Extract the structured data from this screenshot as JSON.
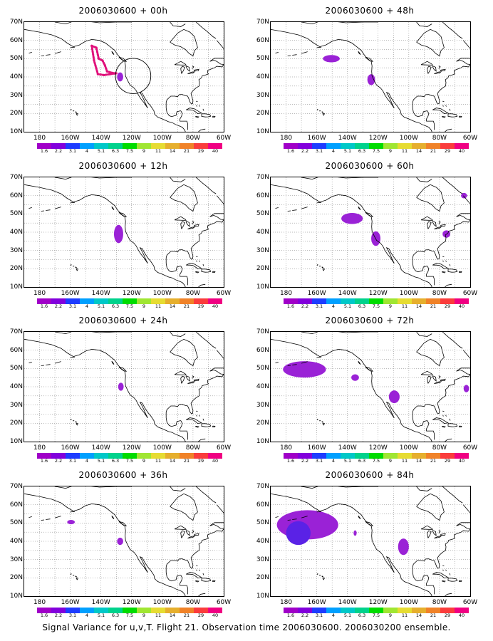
{
  "panels": [
    {
      "title": "2006030600 + 00h",
      "col": 0,
      "row": 0,
      "blobs": [
        {
          "lon": -127.5,
          "lat": 40.0,
          "rx": 2.0,
          "ry": 2.5,
          "color": "#9a22d6"
        }
      ],
      "flight_track": [
        [
          -146.0,
          57.0
        ],
        [
          -143.0,
          56.0
        ],
        [
          -141.5,
          50.0
        ],
        [
          -139.0,
          49.0
        ],
        [
          -137.5,
          46.5
        ],
        [
          -136.0,
          43.0
        ],
        [
          -131.5,
          42.0
        ],
        [
          -130.0,
          42.0
        ],
        [
          -134.0,
          41.5
        ],
        [
          -138.0,
          41.0
        ],
        [
          -142.0,
          41.5
        ],
        [
          -144.5,
          49.0
        ],
        [
          -146.0,
          57.0
        ]
      ],
      "circle": {
        "lon": -119.0,
        "lat": 40.5,
        "r_deg": 11.5
      }
    },
    {
      "title": "2006030600 + 48h",
      "col": 1,
      "row": 0,
      "blobs": [
        {
          "lon": -150.5,
          "lat": 50.0,
          "rx": 5.5,
          "ry": 2.0,
          "color": "#9a22d6"
        },
        {
          "lon": -124.5,
          "lat": 38.5,
          "rx": 2.5,
          "ry": 3.0,
          "color": "#9a22d6"
        }
      ]
    },
    {
      "title": "2006030600 + 12h",
      "col": 0,
      "row": 1,
      "blobs": [
        {
          "lon": -128.5,
          "lat": 39.0,
          "rx": 3.0,
          "ry": 5.0,
          "color": "#9a22d6"
        }
      ]
    },
    {
      "title": "2006030600 + 60h",
      "col": 1,
      "row": 1,
      "blobs": [
        {
          "lon": -137.0,
          "lat": 47.5,
          "rx": 7.0,
          "ry": 3.0,
          "color": "#9a22d6"
        },
        {
          "lon": -121.5,
          "lat": 36.5,
          "rx": 3.0,
          "ry": 4.0,
          "color": "#9a22d6"
        },
        {
          "lon": -75.5,
          "lat": 39.0,
          "rx": 2.5,
          "ry": 2.0,
          "color": "#9a22d6"
        },
        {
          "lon": -64.0,
          "lat": 60.0,
          "rx": 2.0,
          "ry": 1.5,
          "color": "#9a22d6"
        }
      ]
    },
    {
      "title": "2006030600 + 24h",
      "col": 0,
      "row": 2,
      "blobs": [
        {
          "lon": -127.0,
          "lat": 40.0,
          "rx": 1.8,
          "ry": 2.2,
          "color": "#9a22d6"
        }
      ]
    },
    {
      "title": "2006030600 + 72h",
      "col": 1,
      "row": 2,
      "blobs": [
        {
          "lon": -168.0,
          "lat": 49.5,
          "rx": 14.0,
          "ry": 4.5,
          "color": "#9a22d6"
        },
        {
          "lon": -135.0,
          "lat": 45.0,
          "rx": 2.5,
          "ry": 1.8,
          "color": "#9a22d6"
        },
        {
          "lon": -109.5,
          "lat": 34.5,
          "rx": 3.5,
          "ry": 3.5,
          "color": "#9a22d6"
        },
        {
          "lon": -62.5,
          "lat": 39.0,
          "rx": 1.8,
          "ry": 2.0,
          "color": "#9a22d6"
        }
      ]
    },
    {
      "title": "2006030600 + 36h",
      "col": 0,
      "row": 3,
      "blobs": [
        {
          "lon": -159.5,
          "lat": 50.5,
          "rx": 2.5,
          "ry": 1.2,
          "color": "#9a22d6"
        },
        {
          "lon": -127.5,
          "lat": 40.0,
          "rx": 2.0,
          "ry": 2.0,
          "color": "#9a22d6"
        }
      ]
    },
    {
      "title": "2006030600 + 84h",
      "col": 1,
      "row": 3,
      "blobs": [
        {
          "lon": -166.0,
          "lat": 49.0,
          "rx": 20.0,
          "ry": 8.0,
          "color": "#9a22d6"
        },
        {
          "lon": -172.0,
          "lat": 44.5,
          "rx": 8.0,
          "ry": 6.5,
          "color": "#5a22e6"
        },
        {
          "lon": -135.0,
          "lat": 44.5,
          "rx": 1.0,
          "ry": 1.5,
          "color": "#9a22d6"
        },
        {
          "lon": -103.5,
          "lat": 37.0,
          "rx": 3.5,
          "ry": 4.5,
          "color": "#9a22d6"
        }
      ]
    }
  ],
  "map": {
    "lon_range": [
      -190,
      -60
    ],
    "lat_range": [
      10,
      70
    ],
    "lat_ticks": [
      "70N",
      "60N",
      "50N",
      "40N",
      "30N",
      "20N",
      "10N"
    ],
    "lat_values": [
      70,
      60,
      50,
      40,
      30,
      20,
      10
    ],
    "lon_ticks": [
      "180",
      "160W",
      "140W",
      "120W",
      "100W",
      "80W",
      "60W"
    ],
    "lon_values": [
      -180,
      -160,
      -140,
      -120,
      -100,
      -80,
      -60
    ],
    "grid": true
  },
  "colorbar": {
    "colors": [
      "#a000c8",
      "#8200dc",
      "#1e3cff",
      "#00a0ff",
      "#00c8c8",
      "#00d28c",
      "#00dc00",
      "#a0e632",
      "#e6dc32",
      "#e6af2d",
      "#f08228",
      "#fa3c3c",
      "#f00082"
    ],
    "labels": [
      "1.6",
      "2.2",
      "3.1",
      "4",
      "5.1",
      "6.3",
      "7.5",
      "9",
      "11",
      "14",
      "21",
      "29",
      "40"
    ]
  },
  "colors": {
    "track": "#e0107a",
    "blob": "#9a22d6",
    "blob_core": "#5a22e6"
  },
  "footer": "Signal Variance for u,v,T. Flight 21. Observation time 2006030600. 2006030200 ensemble."
}
